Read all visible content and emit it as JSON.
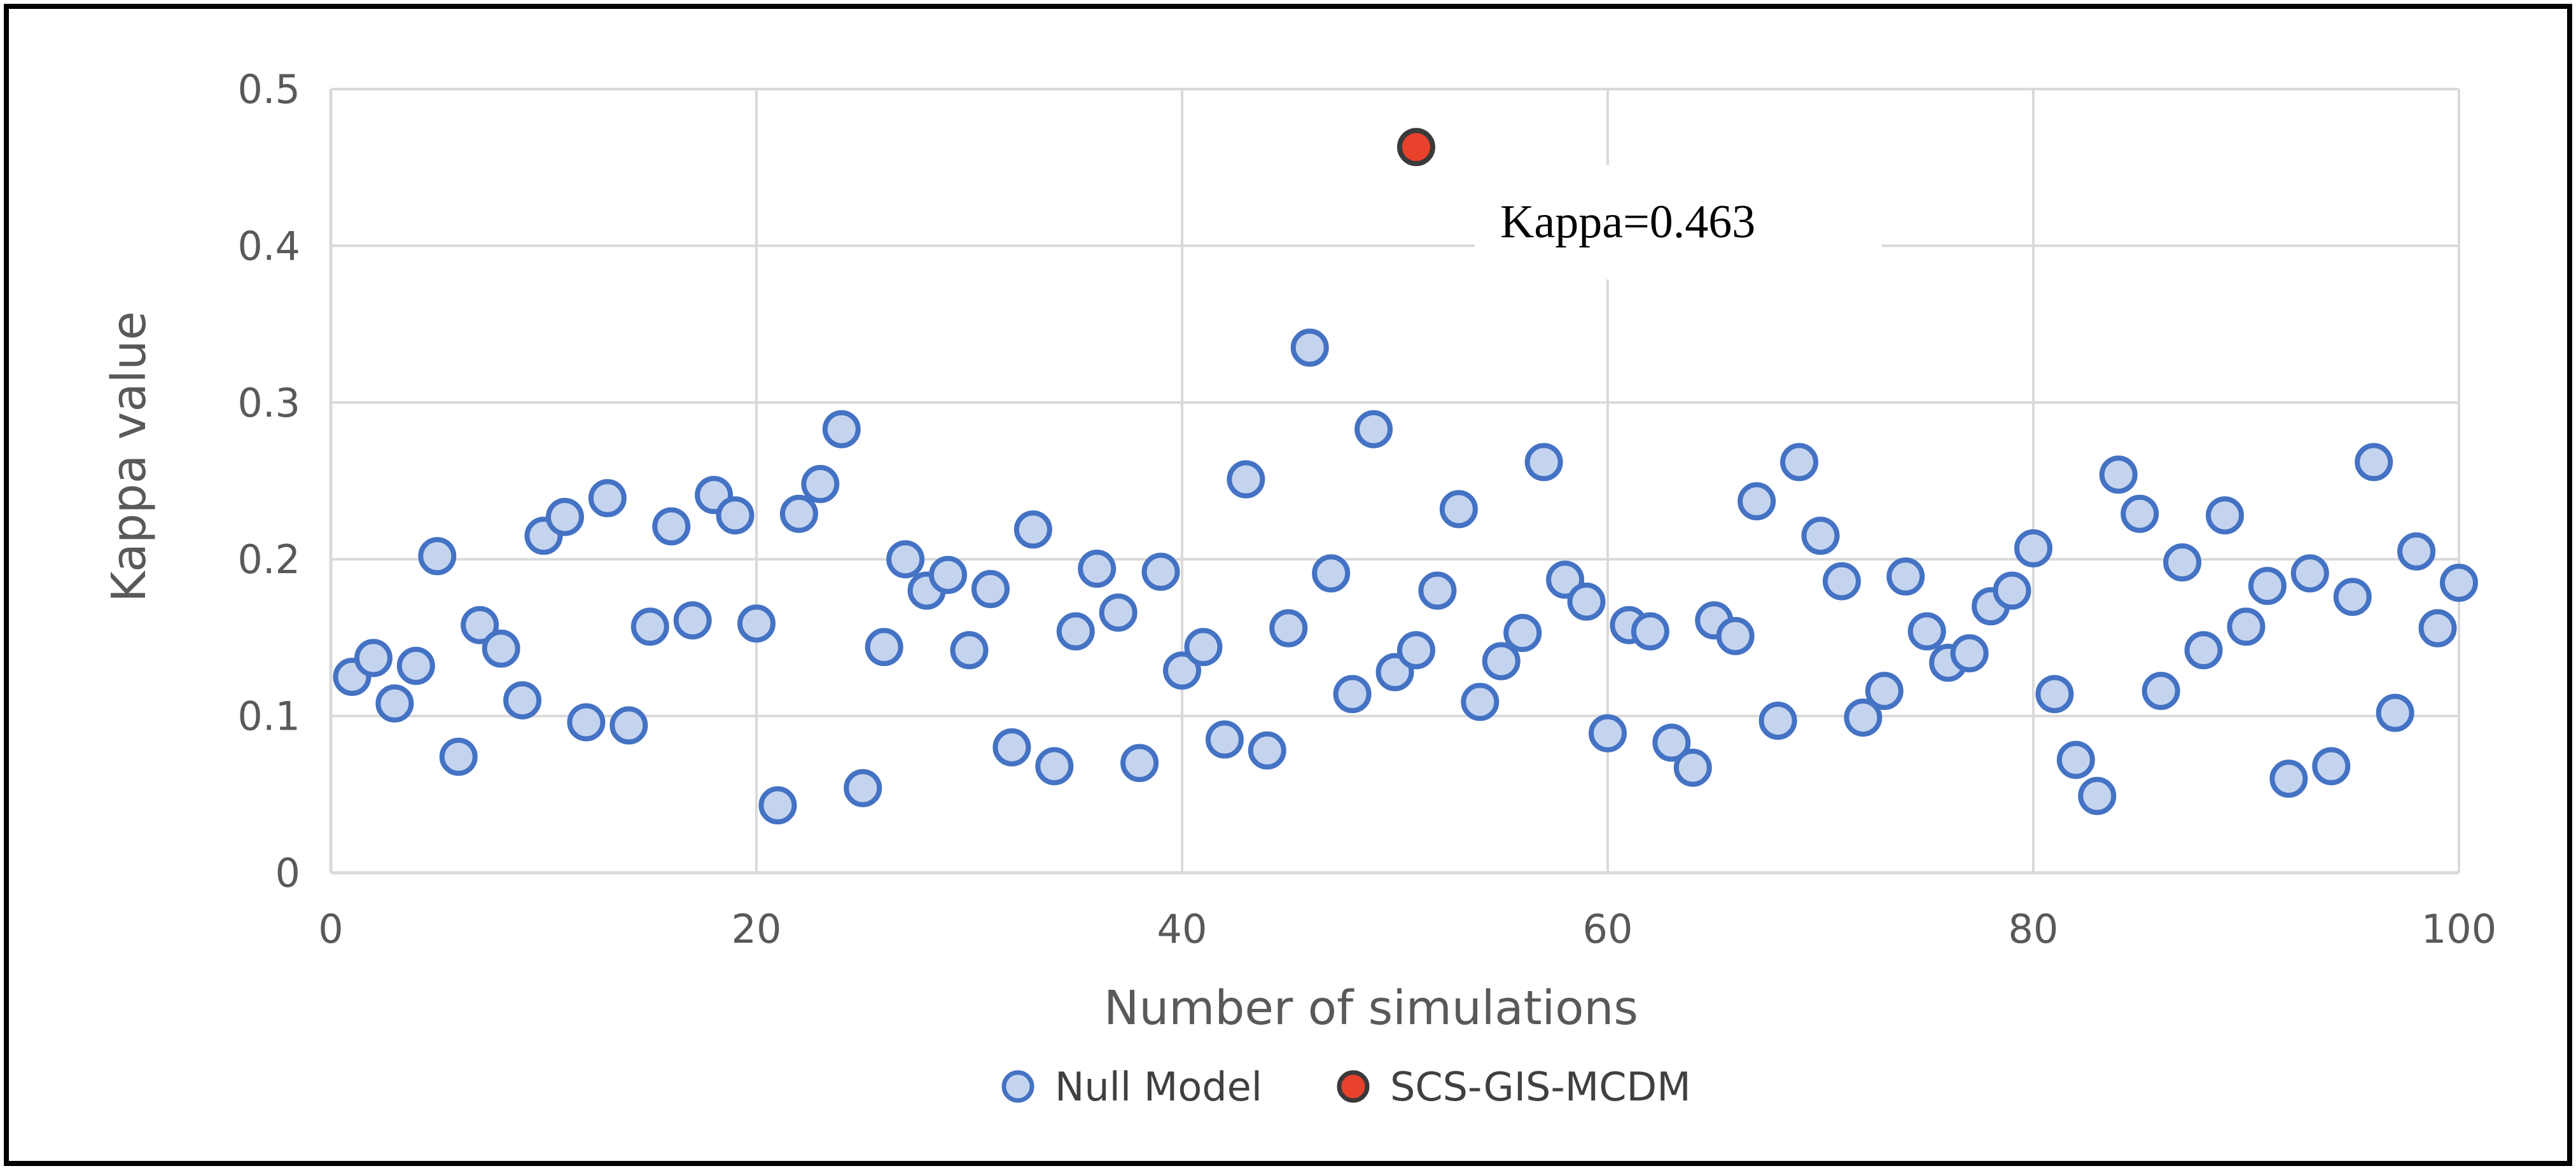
{
  "chart_data": {
    "type": "scatter",
    "title": "",
    "xlabel": "Number of simulations",
    "ylabel": "Kappa value",
    "xlim": [
      0,
      100
    ],
    "ylim": [
      0,
      0.5
    ],
    "x_ticks": [
      0,
      20,
      40,
      60,
      80,
      100
    ],
    "x_tick_labels": [
      "0",
      "20",
      "40",
      "60",
      "80",
      "100"
    ],
    "y_ticks": [
      0,
      0.1,
      0.2,
      0.3,
      0.4,
      0.5
    ],
    "y_tick_labels": [
      "0",
      "0.1",
      "0.2",
      "0.3",
      "0.4",
      "0.5"
    ],
    "grid": true,
    "legend_position": "bottom",
    "series": [
      {
        "name": "Null Model",
        "fill": "#c5d4ee",
        "stroke": "#4472c4",
        "x": [
          1,
          2,
          3,
          4,
          5,
          6,
          7,
          8,
          9,
          10,
          11,
          12,
          13,
          14,
          15,
          16,
          17,
          18,
          19,
          20,
          21,
          22,
          23,
          24,
          25,
          26,
          27,
          28,
          29,
          30,
          31,
          32,
          33,
          34,
          35,
          36,
          37,
          38,
          39,
          40,
          41,
          42,
          43,
          44,
          45,
          46,
          47,
          48,
          49,
          50,
          51,
          52,
          53,
          54,
          55,
          56,
          57,
          58,
          59,
          60,
          61,
          62,
          63,
          64,
          65,
          66,
          67,
          68,
          69,
          70,
          71,
          72,
          73,
          74,
          75,
          76,
          77,
          78,
          79,
          80,
          81,
          82,
          83,
          84,
          85,
          86,
          87,
          88,
          89,
          90,
          91,
          92,
          93,
          94,
          95,
          96,
          97,
          98,
          99,
          100
        ],
        "y": [
          0.125,
          0.137,
          0.108,
          0.132,
          0.202,
          0.074,
          0.158,
          0.143,
          0.11,
          0.215,
          0.227,
          0.096,
          0.239,
          0.094,
          0.157,
          0.221,
          0.161,
          0.241,
          0.228,
          0.159,
          0.043,
          0.229,
          0.248,
          0.283,
          0.054,
          0.144,
          0.2,
          0.18,
          0.19,
          0.142,
          0.181,
          0.08,
          0.219,
          0.068,
          0.154,
          0.194,
          0.166,
          0.07,
          0.192,
          0.129,
          0.144,
          0.085,
          0.251,
          0.078,
          0.156,
          0.335,
          0.191,
          0.114,
          0.283,
          0.128,
          0.142,
          0.18,
          0.232,
          0.109,
          0.135,
          0.153,
          0.262,
          0.187,
          0.173,
          0.089,
          0.158,
          0.154,
          0.083,
          0.067,
          0.161,
          0.151,
          0.237,
          0.097,
          0.262,
          0.215,
          0.186,
          0.099,
          0.116,
          0.189,
          0.154,
          0.134,
          0.14,
          0.17,
          0.18,
          0.207,
          0.114,
          0.072,
          0.049,
          0.254,
          0.229,
          0.116,
          0.198,
          0.142,
          0.228,
          0.157,
          0.183,
          0.06,
          0.191,
          0.068,
          0.176,
          0.262,
          0.102,
          0.205,
          0.156,
          0.185
        ]
      },
      {
        "name": "SCS-GIS-MCDM",
        "fill": "#e8412c",
        "stroke": "#3a3a3a",
        "x": [
          51
        ],
        "y": [
          0.463
        ]
      }
    ],
    "annotations": [
      {
        "text": "Kappa=0.463",
        "x": 51,
        "y": 0.463
      }
    ]
  }
}
